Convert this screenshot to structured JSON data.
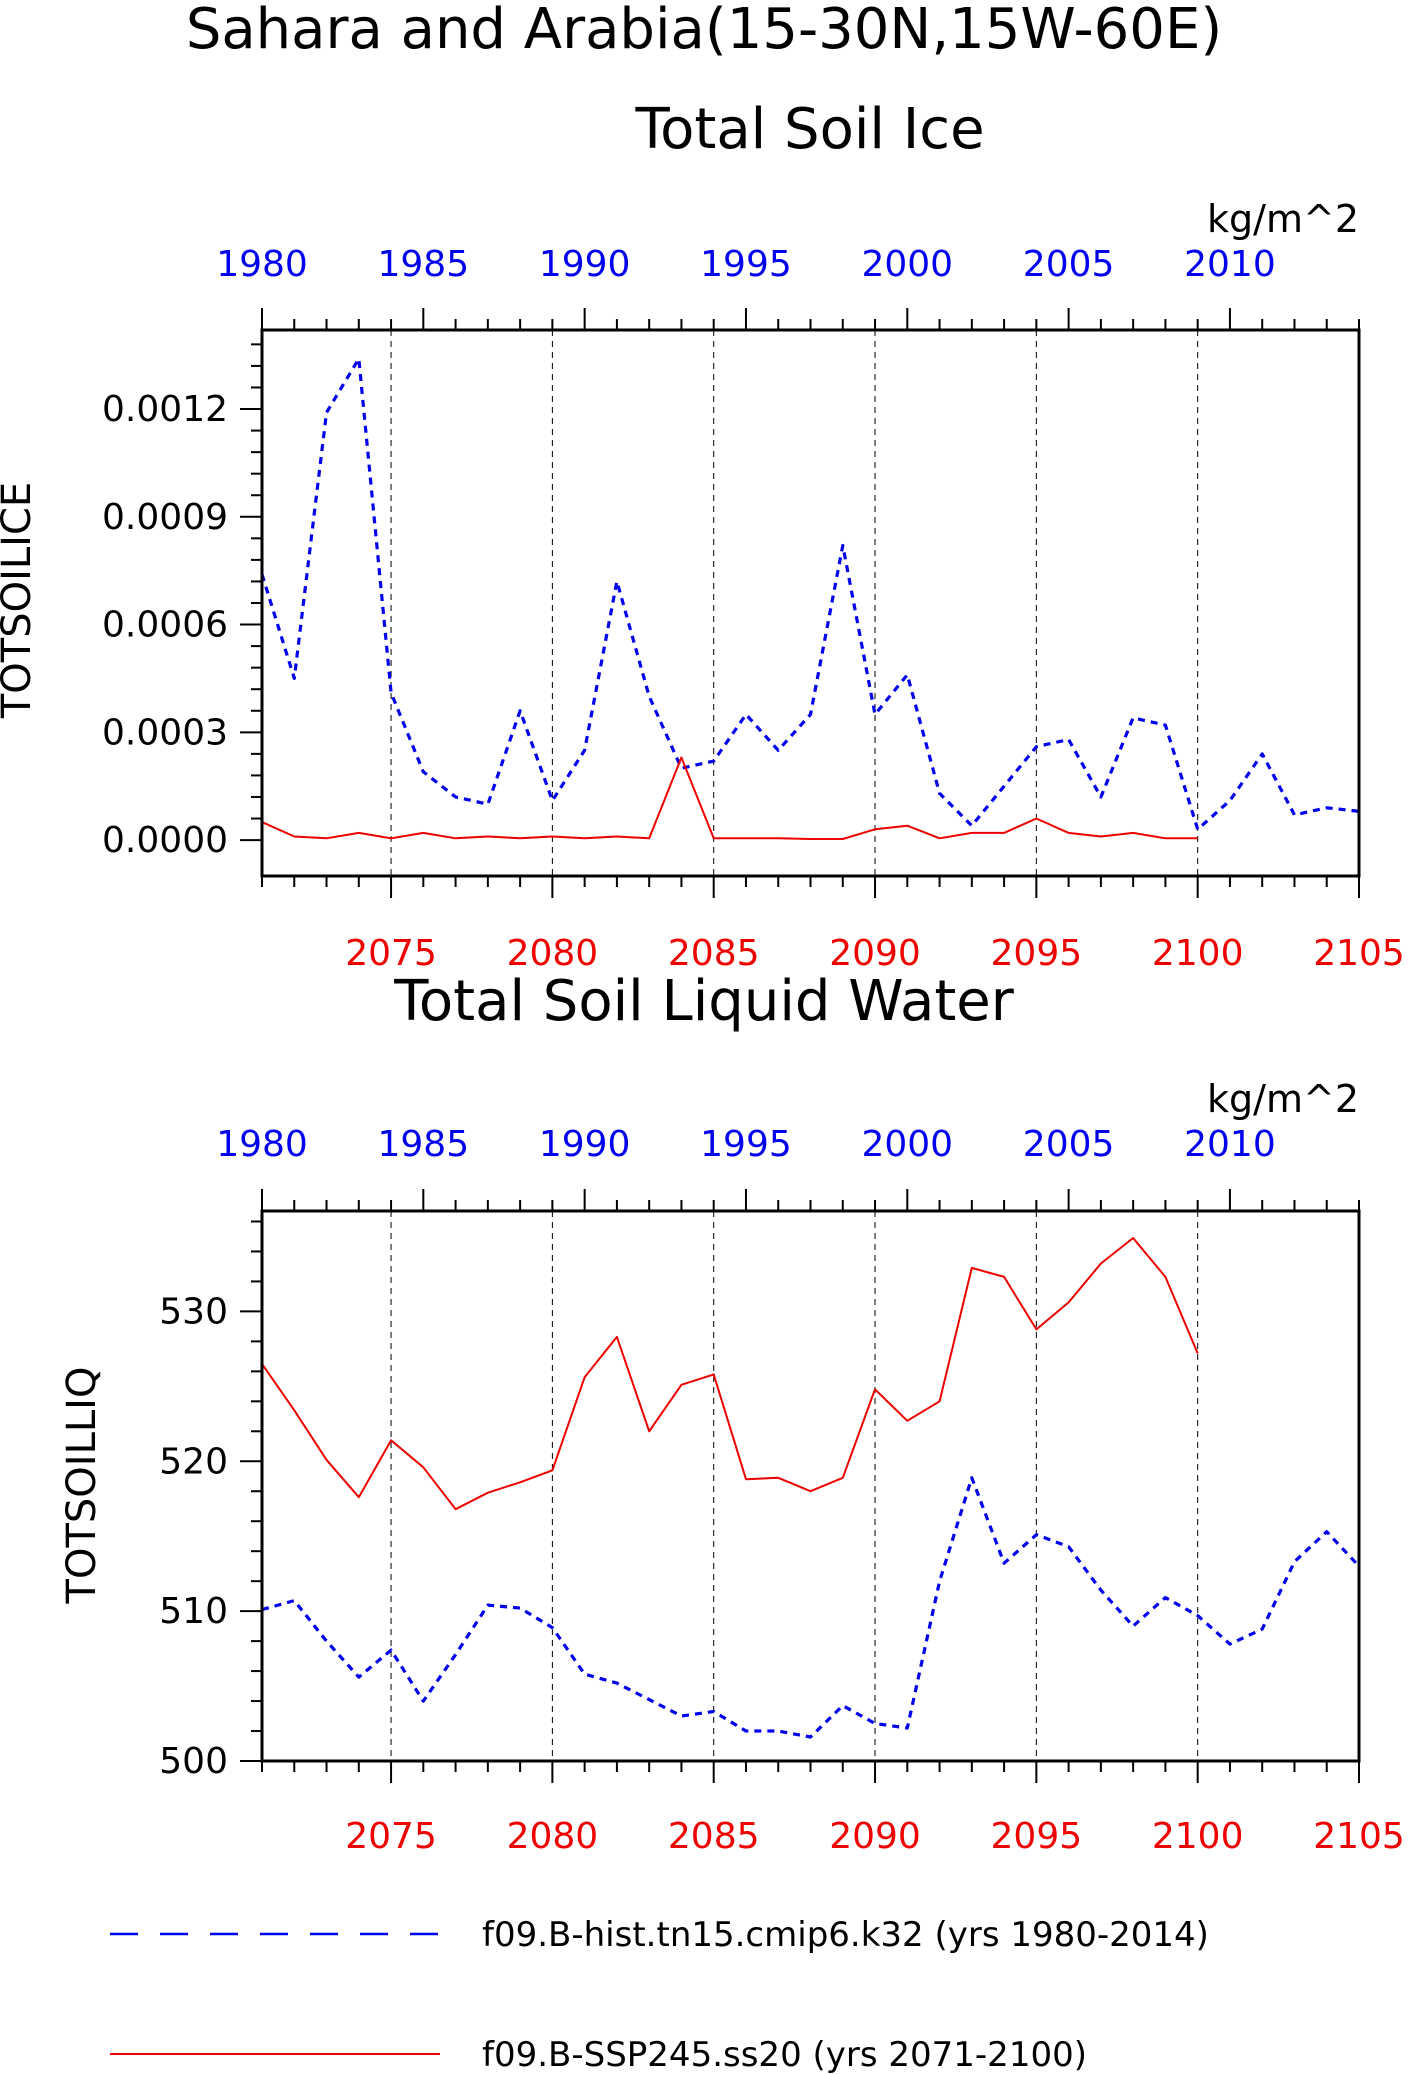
{
  "title": "Sahara and Arabia(15-30N,15W-60E)",
  "colors": {
    "hist": "#0000ee",
    "ssp": "#ee0000",
    "axis": "#000000"
  },
  "legend": [
    {
      "label": "f09.B-hist.tn15.cmip6.k32 (yrs 1980-2014)",
      "color": "#0000ee",
      "style": "dashed"
    },
    {
      "label": "f09.B-SSP245.ss20 (yrs 2071-2100)",
      "color": "#ee0000",
      "style": "solid"
    }
  ],
  "chart_data": [
    {
      "type": "line",
      "title": "Total Soil Ice",
      "ylabel": "TOTSOILICE",
      "units": "kg/m^2",
      "ylim": [
        -0.0001,
        0.00142
      ],
      "yticks": [
        "0.0000",
        "0.0003",
        "0.0006",
        "0.0009",
        "0.0012"
      ],
      "ytick_values": [
        0,
        0.0003,
        0.0006,
        0.0009,
        0.0012
      ],
      "x_top": {
        "lim": [
          1980,
          2014
        ],
        "tick_labels": [
          "1980",
          "1985",
          "1990",
          "1995",
          "2000",
          "2005",
          "2010"
        ],
        "ticks": [
          1980,
          1985,
          1990,
          1995,
          2000,
          2005,
          2010
        ]
      },
      "x_bottom": {
        "lim": [
          2071,
          2105
        ],
        "tick_labels": [
          "2075",
          "2080",
          "2085",
          "2090",
          "2095",
          "2100",
          "2105"
        ],
        "ticks": [
          2075,
          2080,
          2085,
          2090,
          2095,
          2100,
          2105
        ]
      },
      "series": [
        {
          "name": "f09.B-hist.tn15.cmip6.k32 (yrs 1980-2014)",
          "axis": "top",
          "x": [
            1980,
            1981,
            1982,
            1983,
            1984,
            1985,
            1986,
            1987,
            1988,
            1989,
            1990,
            1991,
            1992,
            1993,
            1994,
            1995,
            1996,
            1997,
            1998,
            1999,
            2000,
            2001,
            2002,
            2003,
            2004,
            2005,
            2006,
            2007,
            2008,
            2009,
            2010,
            2011,
            2012,
            2013,
            2014
          ],
          "values": [
            0.00074,
            0.00045,
            0.00119,
            0.00134,
            0.00041,
            0.00019,
            0.00012,
            0.0001,
            0.00036,
            0.00011,
            0.00025,
            0.00072,
            0.0004,
            0.0002,
            0.00022,
            0.00035,
            0.00025,
            0.00035,
            0.00082,
            0.00035,
            0.00046,
            0.00013,
            4e-05,
            0.00015,
            0.00026,
            0.00028,
            0.00012,
            0.00034,
            0.00032,
            3e-05,
            0.00011,
            0.00024,
            7e-05,
            9e-05,
            8e-05
          ]
        },
        {
          "name": "f09.B-SSP245.ss20 (yrs 2071-2100)",
          "axis": "bottom",
          "x": [
            2071,
            2072,
            2073,
            2074,
            2075,
            2076,
            2077,
            2078,
            2079,
            2080,
            2081,
            2082,
            2083,
            2084,
            2085,
            2086,
            2087,
            2088,
            2089,
            2090,
            2091,
            2092,
            2093,
            2094,
            2095,
            2096,
            2097,
            2098,
            2099,
            2100
          ],
          "values": [
            5e-05,
            1e-05,
            5e-06,
            2e-05,
            5e-06,
            2e-05,
            5e-06,
            1e-05,
            5e-06,
            1e-05,
            5e-06,
            1e-05,
            5e-06,
            0.00023,
            5e-06,
            5e-06,
            5e-06,
            3e-06,
            3e-06,
            3e-05,
            4e-05,
            5e-06,
            2e-05,
            2e-05,
            6e-05,
            2e-05,
            1e-05,
            2e-05,
            5e-06,
            5e-06
          ]
        }
      ]
    },
    {
      "type": "line",
      "title": "Total Soil Liquid Water",
      "ylabel": "TOTSOILLIQ",
      "units": "kg/m^2",
      "ylim": [
        500,
        536.7
      ],
      "yticks": [
        "500",
        "510",
        "520",
        "530"
      ],
      "ytick_values": [
        500,
        510,
        520,
        530
      ],
      "x_top": {
        "lim": [
          1980,
          2014
        ],
        "tick_labels": [
          "1980",
          "1985",
          "1990",
          "1995",
          "2000",
          "2005",
          "2010"
        ],
        "ticks": [
          1980,
          1985,
          1990,
          1995,
          2000,
          2005,
          2010
        ]
      },
      "x_bottom": {
        "lim": [
          2071,
          2105
        ],
        "tick_labels": [
          "2075",
          "2080",
          "2085",
          "2090",
          "2095",
          "2100",
          "2105"
        ],
        "ticks": [
          2075,
          2080,
          2085,
          2090,
          2095,
          2100,
          2105
        ]
      },
      "series": [
        {
          "name": "f09.B-hist.tn15.cmip6.k32 (yrs 1980-2014)",
          "axis": "top",
          "x": [
            1980,
            1981,
            1982,
            1983,
            1984,
            1985,
            1986,
            1987,
            1988,
            1989,
            1990,
            1991,
            1992,
            1993,
            1994,
            1995,
            1996,
            1997,
            1998,
            1999,
            2000,
            2001,
            2002,
            2003,
            2004,
            2005,
            2006,
            2007,
            2008,
            2009,
            2010,
            2011,
            2012,
            2013,
            2014
          ],
          "values": [
            510.1,
            510.7,
            508.0,
            505.6,
            507.4,
            504.0,
            507.1,
            510.4,
            510.2,
            508.9,
            505.8,
            505.2,
            504.1,
            503.0,
            503.3,
            502.0,
            502.0,
            501.6,
            503.7,
            502.5,
            502.2,
            512.0,
            518.9,
            513.2,
            515.1,
            514.3,
            511.4,
            509.0,
            510.9,
            509.7,
            507.8,
            508.8,
            513.3,
            515.3,
            513.0
          ]
        },
        {
          "name": "f09.B-SSP245.ss20 (yrs 2071-2100)",
          "axis": "bottom",
          "x": [
            2071,
            2072,
            2073,
            2074,
            2075,
            2076,
            2077,
            2078,
            2079,
            2080,
            2081,
            2082,
            2083,
            2084,
            2085,
            2086,
            2087,
            2088,
            2089,
            2090,
            2091,
            2092,
            2093,
            2094,
            2095,
            2096,
            2097,
            2098,
            2099,
            2100
          ],
          "values": [
            526.5,
            523.4,
            520.1,
            517.6,
            521.4,
            519.6,
            516.8,
            517.9,
            518.6,
            519.4,
            525.6,
            528.3,
            522.0,
            525.1,
            525.8,
            518.8,
            518.9,
            518.0,
            518.9,
            524.8,
            522.7,
            524.0,
            532.9,
            532.3,
            528.8,
            530.6,
            533.2,
            534.9,
            532.3,
            527.2
          ]
        }
      ]
    }
  ]
}
